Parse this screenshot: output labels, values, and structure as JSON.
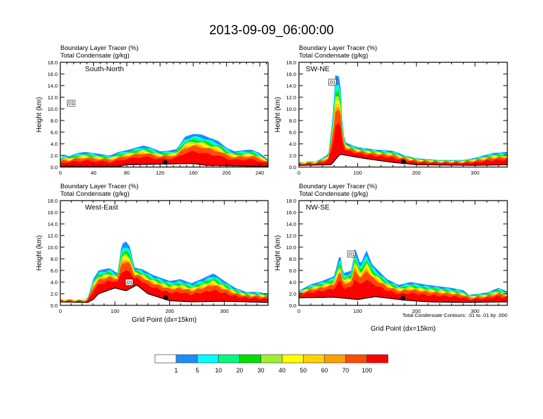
{
  "title": "2013-09-09_06:00:00",
  "chart_data": [
    {
      "type": "heatmap",
      "panel": "South-North",
      "subtitle_lines": [
        "Boundary Layer Tracer   (%)",
        "Total Condensate   (g/kg)"
      ],
      "xlabel": "",
      "ylabel": "Height (km)",
      "xlim": [
        0,
        250
      ],
      "ylim": [
        0,
        18
      ],
      "xticks": [
        0,
        40,
        80,
        120,
        160,
        200,
        240
      ],
      "xtick_labels": [
        "0",
        "40",
        "80",
        "120",
        "160",
        "200",
        "240"
      ],
      "yticks": [
        0,
        2,
        4,
        6,
        8,
        10,
        12,
        14,
        16,
        18
      ],
      "ytick_labels": [
        "0.0",
        "2.0",
        "4.0",
        "6.0",
        "8.0",
        "10.0",
        "12.0",
        "14.0",
        "16.0",
        "18.0"
      ],
      "tracer_top_km": [
        [
          0,
          1.4
        ],
        [
          5,
          2.2
        ],
        [
          10,
          1.8
        ],
        [
          20,
          2.4
        ],
        [
          30,
          2.6
        ],
        [
          40,
          2.4
        ],
        [
          50,
          2.2
        ],
        [
          60,
          2.0
        ],
        [
          70,
          2.6
        ],
        [
          80,
          2.9
        ],
        [
          90,
          3.3
        ],
        [
          100,
          3.7
        ],
        [
          110,
          3.3
        ],
        [
          120,
          2.7
        ],
        [
          130,
          2.8
        ],
        [
          140,
          3.1
        ],
        [
          150,
          5.2
        ],
        [
          160,
          5.7
        ],
        [
          170,
          5.6
        ],
        [
          180,
          5.0
        ],
        [
          190,
          4.5
        ],
        [
          200,
          3.3
        ],
        [
          210,
          2.7
        ],
        [
          220,
          2.9
        ],
        [
          230,
          3.0
        ],
        [
          240,
          2.4
        ],
        [
          250,
          1.3
        ]
      ],
      "terrain_km": [
        [
          0,
          0.1
        ],
        [
          70,
          0.1
        ],
        [
          80,
          0.4
        ],
        [
          120,
          0.5
        ],
        [
          160,
          0.6
        ],
        [
          175,
          0.3
        ],
        [
          250,
          0.1
        ]
      ],
      "condensate_contour_label": ".01",
      "marker_x": 126
    },
    {
      "type": "heatmap",
      "panel": "SW-NE",
      "subtitle_lines": [
        "Boundary Layer Tracer   (%)",
        "Total Condensate   (g/kg)"
      ],
      "xlabel": "",
      "ylabel": "Height (km)",
      "xlim": [
        0,
        355
      ],
      "ylim": [
        0,
        18
      ],
      "xticks": [
        0,
        100,
        200,
        300
      ],
      "xtick_labels": [
        "0",
        "100",
        "200",
        "300"
      ],
      "yticks": [
        0,
        2,
        4,
        6,
        8,
        10,
        12,
        14,
        16,
        18
      ],
      "ytick_labels": [
        "0.0",
        "2.0",
        "4.0",
        "6.0",
        "8.0",
        "10.0",
        "12.0",
        "14.0",
        "16.0",
        "18.0"
      ],
      "tracer_top_km": [
        [
          0,
          0.8
        ],
        [
          30,
          1.0
        ],
        [
          40,
          1.6
        ],
        [
          50,
          2.2
        ],
        [
          58,
          9
        ],
        [
          62,
          15.8
        ],
        [
          70,
          15.5
        ],
        [
          75,
          6
        ],
        [
          80,
          4.2
        ],
        [
          100,
          3.4
        ],
        [
          130,
          3.0
        ],
        [
          160,
          2.8
        ],
        [
          180,
          2.0
        ],
        [
          200,
          1.5
        ],
        [
          240,
          1.2
        ],
        [
          280,
          1.2
        ],
        [
          300,
          1.6
        ],
        [
          330,
          2.4
        ],
        [
          355,
          2.6
        ]
      ],
      "terrain_km": [
        [
          0,
          0.3
        ],
        [
          55,
          0.4
        ],
        [
          70,
          2.2
        ],
        [
          110,
          1.5
        ],
        [
          160,
          0.8
        ],
        [
          200,
          0.4
        ],
        [
          300,
          0.3
        ],
        [
          355,
          0.4
        ]
      ],
      "condensate_contour_label": ".01",
      "marker_x": 178
    },
    {
      "type": "heatmap",
      "panel": "West-East",
      "subtitle_lines": [
        "Boundary Layer Tracer   (%)",
        "Total Condensate   (g/kg)"
      ],
      "xlabel": "Grid Point (dx=15km)",
      "ylabel": "Height (km)",
      "xlim": [
        0,
        380
      ],
      "ylim": [
        0,
        18
      ],
      "xticks": [
        0,
        100,
        200,
        300
      ],
      "xtick_labels": [
        "0",
        "100",
        "200",
        "300"
      ],
      "yticks": [
        0,
        2,
        4,
        6,
        8,
        10,
        12,
        14,
        16,
        18
      ],
      "ytick_labels": [
        "0.0",
        "2.0",
        "4.0",
        "6.0",
        "8.0",
        "10.0",
        "12.0",
        "14.0",
        "16.0",
        "18.0"
      ],
      "tracer_top_km": [
        [
          0,
          1.0
        ],
        [
          40,
          0.9
        ],
        [
          50,
          1.2
        ],
        [
          60,
          4.5
        ],
        [
          70,
          6.0
        ],
        [
          90,
          6.4
        ],
        [
          105,
          5.5
        ],
        [
          112,
          10.5
        ],
        [
          120,
          11
        ],
        [
          128,
          10
        ],
        [
          135,
          6.5
        ],
        [
          150,
          6.2
        ],
        [
          170,
          5.2
        ],
        [
          200,
          4.2
        ],
        [
          220,
          4.5
        ],
        [
          240,
          3.8
        ],
        [
          260,
          4.6
        ],
        [
          280,
          5.5
        ],
        [
          300,
          4.2
        ],
        [
          320,
          3.0
        ],
        [
          340,
          2.3
        ],
        [
          360,
          2.3
        ],
        [
          380,
          2.0
        ]
      ],
      "terrain_km": [
        [
          0,
          0.6
        ],
        [
          50,
          0.5
        ],
        [
          60,
          1.0
        ],
        [
          70,
          2.0
        ],
        [
          100,
          3.0
        ],
        [
          120,
          2.5
        ],
        [
          140,
          3.5
        ],
        [
          160,
          2.0
        ],
        [
          200,
          0.8
        ],
        [
          240,
          0.6
        ],
        [
          300,
          0.7
        ],
        [
          380,
          0.5
        ]
      ],
      "condensate_contour_label": ".01",
      "marker_x": 193
    },
    {
      "type": "heatmap",
      "panel": "NW-SE",
      "subtitle_lines": [
        "Boundary Layer Tracer   (%)",
        "Total Condensate   (g/kg)"
      ],
      "xlabel": "Grid Point (dx=15km)",
      "ylabel": "Height (km)",
      "xlim": [
        0,
        355
      ],
      "ylim": [
        0,
        18
      ],
      "xticks": [
        0,
        100,
        200,
        300
      ],
      "xtick_labels": [
        "0",
        "100",
        "200",
        "300"
      ],
      "yticks": [
        0,
        2,
        4,
        6,
        8,
        10,
        12,
        14,
        16,
        18
      ],
      "ytick_labels": [
        "0.0",
        "2.0",
        "4.0",
        "6.0",
        "8.0",
        "10.0",
        "12.0",
        "14.0",
        "16.0",
        "18.0"
      ],
      "tracer_top_km": [
        [
          0,
          2.5
        ],
        [
          20,
          3.6
        ],
        [
          40,
          4.2
        ],
        [
          60,
          5.0
        ],
        [
          70,
          9.0
        ],
        [
          75,
          5.5
        ],
        [
          90,
          6.0
        ],
        [
          95,
          10.0
        ],
        [
          105,
          7.0
        ],
        [
          115,
          9.5
        ],
        [
          125,
          7.0
        ],
        [
          135,
          6.0
        ],
        [
          150,
          4.5
        ],
        [
          170,
          3.5
        ],
        [
          190,
          4.0
        ],
        [
          220,
          3.5
        ],
        [
          260,
          3.0
        ],
        [
          280,
          2.6
        ],
        [
          290,
          1.8
        ],
        [
          320,
          2.2
        ],
        [
          340,
          3.0
        ],
        [
          355,
          2.4
        ]
      ],
      "terrain_km": [
        [
          0,
          1.3
        ],
        [
          60,
          1.4
        ],
        [
          100,
          1.0
        ],
        [
          130,
          1.5
        ],
        [
          180,
          0.9
        ],
        [
          220,
          0.6
        ],
        [
          280,
          0.5
        ],
        [
          355,
          0.6
        ]
      ],
      "condensate_contour_label": ".01",
      "marker_x": 177
    }
  ],
  "contour_info": "Total Condensate Contours: .01 to .01 by .000",
  "colorbar": {
    "colors": [
      "#ffffff",
      "#1e8cff",
      "#00ffff",
      "#00fa80",
      "#00e000",
      "#a0f030",
      "#ffff00",
      "#ffd200",
      "#ffa000",
      "#ff4b00",
      "#ff0000"
    ],
    "labels": [
      "1",
      "5",
      "10",
      "20",
      "30",
      "40",
      "50",
      "60",
      "70",
      "100"
    ]
  }
}
